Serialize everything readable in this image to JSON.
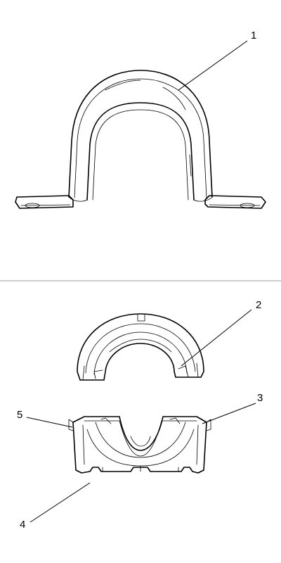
{
  "callouts": {
    "c1": "1",
    "c2": "2",
    "c3": "3",
    "c4": "4",
    "c5": "5"
  },
  "colors": {
    "line": "#000000",
    "divider": "#9a9a9a",
    "background": "#ffffff"
  }
}
